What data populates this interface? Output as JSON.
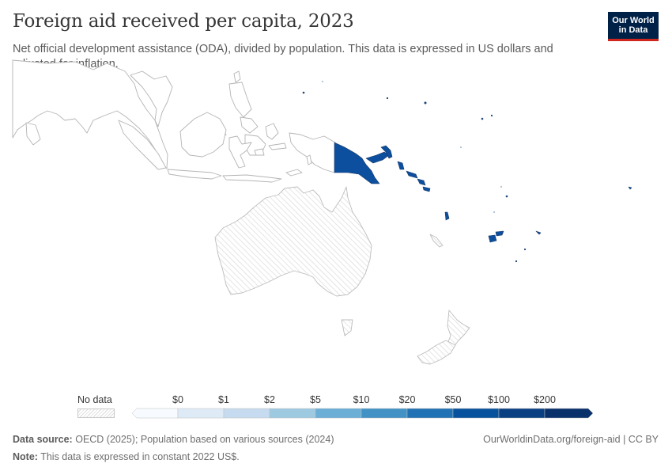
{
  "title": "Foreign aid received per capita, 2023",
  "subtitle": "Net official development assistance (ODA), divided by population. This data is expressed in US dollars and adjusted for inflation.",
  "logo": {
    "line1": "Our World",
    "line2": "in Data"
  },
  "legend": {
    "no_data_label": "No data",
    "bins": [
      "$0",
      "$1",
      "$2",
      "$5",
      "$10",
      "$20",
      "$50",
      "$100",
      "$200"
    ],
    "colors": [
      "#f7fbff",
      "#deebf7",
      "#c6dbef",
      "#9ecae1",
      "#6baed6",
      "#4292c6",
      "#2171b5",
      "#08519c",
      "#08306b",
      "#08306b"
    ]
  },
  "colors": {
    "no_data_fill": "#ffffff",
    "no_data_hatch": "#dcdcdc",
    "border": "#b4b4b4",
    "png_fill": "#0b4f9e",
    "pacific_fill": "#0c4a8f"
  },
  "footer": {
    "source_label": "Data source:",
    "source_text": "OECD (2025); Population based on various sources (2024)",
    "note_label": "Note:",
    "note_text": "This data is expressed in constant 2022 US$.",
    "url": "OurWorldinData.org/foreign-aid | CC BY"
  }
}
